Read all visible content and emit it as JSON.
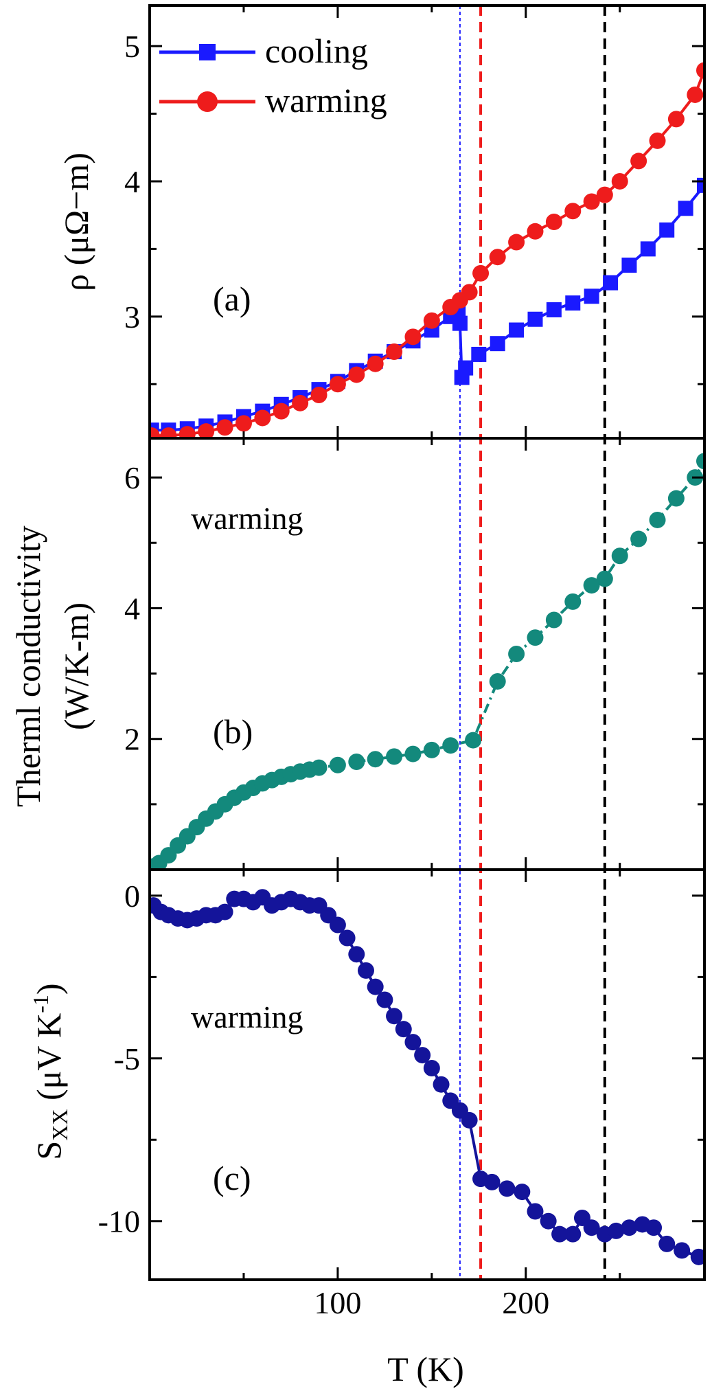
{
  "chart_data": {
    "type": "scatter",
    "xlabel": "T (K)",
    "xlim": [
      0,
      295
    ],
    "x_ticks": [
      100,
      200
    ],
    "vlines": [
      {
        "x": 165,
        "color": "#1f1fff",
        "style": "dotted"
      },
      {
        "x": 176,
        "color": "#ee1c1c",
        "style": "dashed"
      },
      {
        "x": 242,
        "color": "#000000",
        "style": "dashed"
      }
    ],
    "panels": [
      {
        "label": "(a)",
        "ylabel": "ρ (μΩ−m)",
        "ylim": [
          2.1,
          5.3
        ],
        "y_ticks": [
          3,
          4,
          5
        ],
        "legend": {
          "position": "top-left",
          "entries": [
            "cooling",
            "warming"
          ]
        },
        "series": [
          {
            "name": "cooling",
            "color": "#1a1aff",
            "marker": "square",
            "x": [
              1,
              10,
              20,
              30,
              40,
              50,
              60,
              70,
              80,
              90,
              100,
              110,
              120,
              130,
              140,
              150,
              160,
              164,
              165,
              166,
              168,
              175,
              185,
              195,
              205,
              215,
              225,
              235,
              245,
              255,
              265,
              275,
              285,
              295
            ],
            "y": [
              2.16,
              2.16,
              2.17,
              2.19,
              2.22,
              2.26,
              2.3,
              2.35,
              2.4,
              2.46,
              2.52,
              2.6,
              2.67,
              2.74,
              2.82,
              2.9,
              3.0,
              3.03,
              2.95,
              2.55,
              2.62,
              2.72,
              2.8,
              2.9,
              2.98,
              3.05,
              3.1,
              3.15,
              3.25,
              3.38,
              3.5,
              3.64,
              3.8,
              3.97
            ]
          },
          {
            "name": "warming",
            "color": "#ee1c1c",
            "marker": "circle",
            "x": [
              1,
              10,
              20,
              30,
              40,
              50,
              60,
              70,
              80,
              90,
              100,
              110,
              120,
              130,
              140,
              150,
              160,
              165,
              170,
              176,
              185,
              195,
              205,
              215,
              225,
              235,
              242,
              250,
              260,
              270,
              280,
              290,
              295
            ],
            "y": [
              2.12,
              2.12,
              2.13,
              2.15,
              2.18,
              2.21,
              2.25,
              2.3,
              2.36,
              2.42,
              2.5,
              2.57,
              2.65,
              2.74,
              2.85,
              2.97,
              3.07,
              3.12,
              3.18,
              3.32,
              3.44,
              3.55,
              3.63,
              3.7,
              3.78,
              3.85,
              3.9,
              4.0,
              4.15,
              4.3,
              4.46,
              4.64,
              4.82
            ]
          }
        ]
      },
      {
        "label": "(b)",
        "annotation": "warming",
        "ylabel": [
          "Therml conductivity",
          "(W/K-m)"
        ],
        "ylim": [
          0,
          6.6
        ],
        "y_ticks": [
          2,
          4,
          6
        ],
        "series": [
          {
            "name": "",
            "color": "#13897c",
            "marker": "circle",
            "line": "dash-dot",
            "x": [
              2,
              5,
              10,
              15,
              20,
              25,
              30,
              35,
              40,
              45,
              50,
              55,
              60,
              65,
              70,
              75,
              80,
              85,
              90,
              100,
              110,
              120,
              130,
              140,
              150,
              160,
              172,
              185,
              195,
              205,
              215,
              225,
              235,
              242,
              250,
              260,
              270,
              280,
              290,
              295
            ],
            "y": [
              0.05,
              0.1,
              0.22,
              0.37,
              0.51,
              0.65,
              0.78,
              0.89,
              1.0,
              1.1,
              1.18,
              1.25,
              1.32,
              1.37,
              1.42,
              1.46,
              1.5,
              1.53,
              1.56,
              1.6,
              1.65,
              1.69,
              1.73,
              1.77,
              1.83,
              1.9,
              1.98,
              2.88,
              3.3,
              3.55,
              3.82,
              4.1,
              4.35,
              4.45,
              4.8,
              5.06,
              5.35,
              5.68,
              6.0,
              6.25
            ]
          }
        ]
      },
      {
        "label": "(c)",
        "annotation": "warming",
        "ylabel": "S_XX (μV K^-1)",
        "ylabel_parts": {
          "pre": "S",
          "sub": "XX",
          "mid": " (μV K",
          "sup": "-1",
          "post": ")"
        },
        "ylim": [
          -11.8,
          0.8
        ],
        "y_ticks": [
          0,
          -5,
          -10
        ],
        "y_tick_labels": [
          "0",
          "-5",
          "-10"
        ],
        "series": [
          {
            "name": "",
            "color": "#14149a",
            "marker": "circle",
            "x": [
              2,
              6,
              10,
              15,
              20,
              25,
              30,
              35,
              40,
              45,
              50,
              55,
              60,
              65,
              70,
              75,
              80,
              85,
              90,
              95,
              100,
              105,
              110,
              115,
              120,
              125,
              130,
              135,
              140,
              145,
              150,
              155,
              160,
              165,
              170,
              176,
              182,
              190,
              198,
              205,
              212,
              218,
              225,
              230,
              235,
              242,
              248,
              255,
              262,
              268,
              275,
              283,
              292
            ],
            "y": [
              -0.3,
              -0.5,
              -0.6,
              -0.7,
              -0.75,
              -0.7,
              -0.6,
              -0.6,
              -0.5,
              -0.1,
              -0.1,
              -0.2,
              -0.05,
              -0.3,
              -0.2,
              -0.1,
              -0.2,
              -0.3,
              -0.3,
              -0.6,
              -0.9,
              -1.3,
              -1.8,
              -2.3,
              -2.8,
              -3.2,
              -3.7,
              -4.1,
              -4.5,
              -4.9,
              -5.3,
              -5.8,
              -6.3,
              -6.6,
              -6.9,
              -8.7,
              -8.8,
              -9.0,
              -9.1,
              -9.7,
              -10.0,
              -10.4,
              -10.4,
              -9.9,
              -10.2,
              -10.4,
              -10.3,
              -10.2,
              -10.1,
              -10.2,
              -10.7,
              -10.9,
              -11.1
            ]
          }
        ]
      }
    ]
  }
}
